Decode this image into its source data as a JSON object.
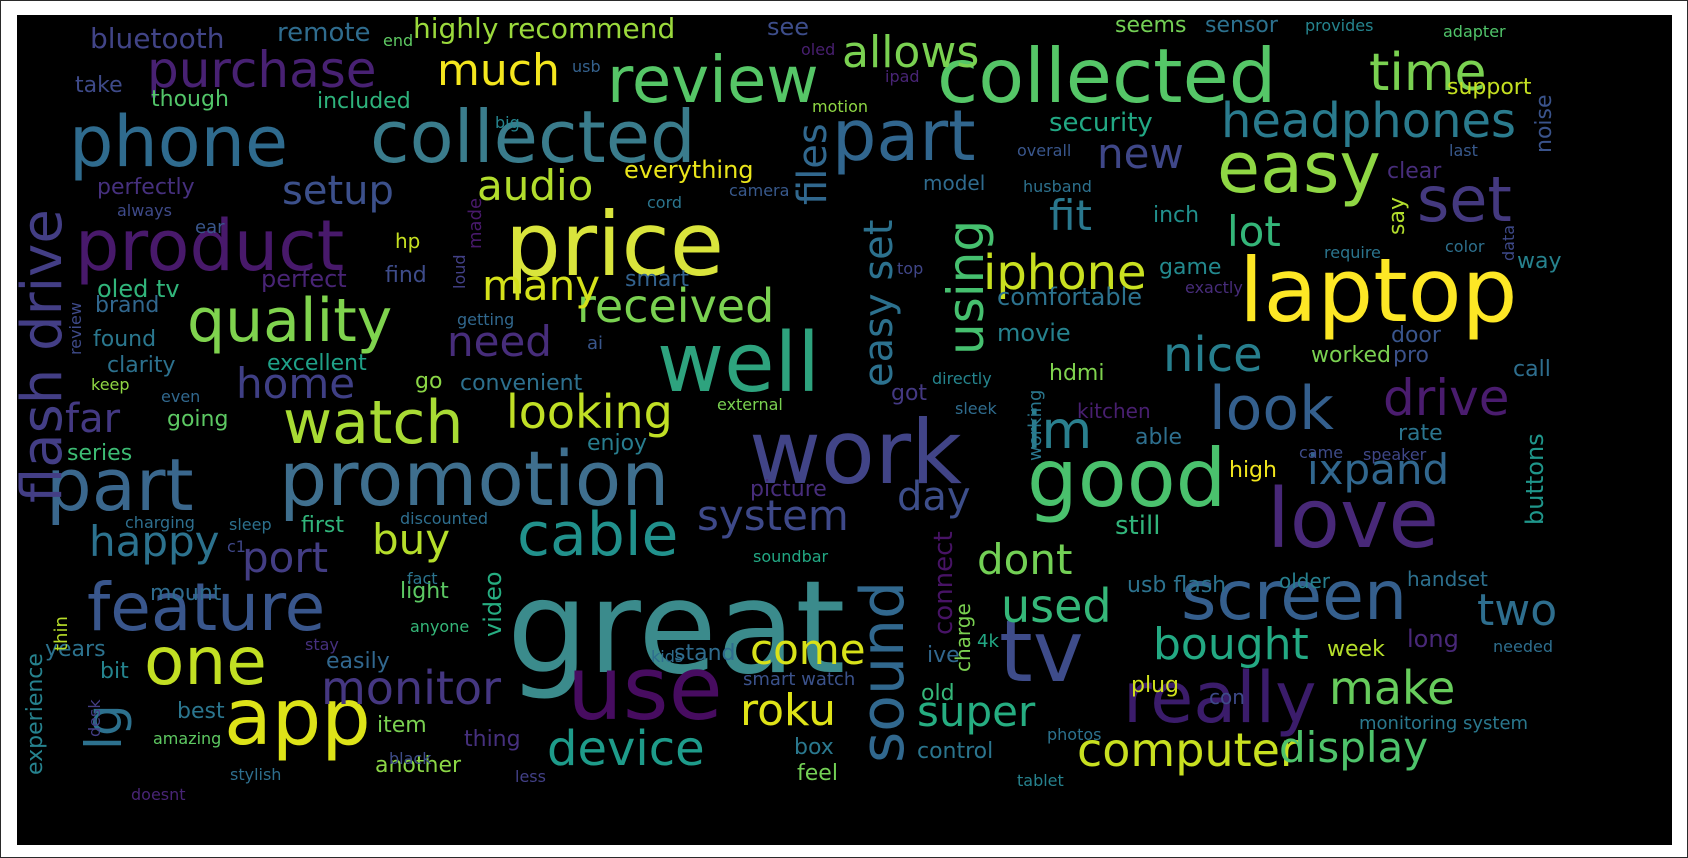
{
  "wordcloud": {
    "background": "#000000",
    "colormap": "viridis",
    "words": [
      {
        "text": "great",
        "color": "#3b8b8c"
      },
      {
        "text": "work",
        "color": "#414487"
      },
      {
        "text": "price",
        "color": "#d9e43c"
      },
      {
        "text": "laptop",
        "color": "#fde725"
      },
      {
        "text": "collected",
        "color": "#55c667"
      },
      {
        "text": "collected",
        "color": "#3a7c8c"
      },
      {
        "text": "review",
        "color": "#56c667"
      },
      {
        "text": "promotion",
        "color": "#3f6f8e"
      },
      {
        "text": "use",
        "color": "#470c60"
      },
      {
        "text": "tv",
        "color": "#3e4c8a"
      },
      {
        "text": "well",
        "color": "#2ea37e"
      },
      {
        "text": "good",
        "color": "#4ac16d"
      },
      {
        "text": "love",
        "color": "#482878"
      },
      {
        "text": "app",
        "color": "#dde318"
      },
      {
        "text": "part",
        "color": "#3a678d"
      },
      {
        "text": "part",
        "color": "#31668e"
      },
      {
        "text": "product",
        "color": "#48196b"
      },
      {
        "text": "phone",
        "color": "#2f6b8e"
      },
      {
        "text": "screen",
        "color": "#355f8d"
      },
      {
        "text": "easy",
        "color": "#8fd744"
      },
      {
        "text": "feature",
        "color": "#39568c"
      },
      {
        "text": "really",
        "color": "#3b1c6b"
      },
      {
        "text": "one",
        "color": "#c2df23"
      },
      {
        "text": "quality",
        "color": "#7fd34e"
      },
      {
        "text": "watch",
        "color": "#a8db34"
      },
      {
        "text": "sound",
        "color": "#31688e"
      },
      {
        "text": "flash drive",
        "color": "#433e85"
      },
      {
        "text": "purchase",
        "color": "#482173"
      },
      {
        "text": "time",
        "color": "#7ad151"
      },
      {
        "text": "headphones",
        "color": "#2a7b8e"
      },
      {
        "text": "set",
        "color": "#44397f"
      },
      {
        "text": "look",
        "color": "#345f8d"
      },
      {
        "text": "drive",
        "color": "#4a1c6e"
      },
      {
        "text": "nice",
        "color": "#277f8e"
      },
      {
        "text": "im",
        "color": "#2a7f8e"
      },
      {
        "text": "iphone",
        "color": "#c9e020"
      },
      {
        "text": "using",
        "color": "#46c06f"
      },
      {
        "text": "lg",
        "color": "#2d718e"
      },
      {
        "text": "cable",
        "color": "#21918c"
      },
      {
        "text": "device",
        "color": "#1e9b8a"
      },
      {
        "text": "monitor",
        "color": "#453781"
      },
      {
        "text": "computer",
        "color": "#c8e020"
      },
      {
        "text": "display",
        "color": "#4ec36b"
      },
      {
        "text": "make",
        "color": "#67cc5c"
      },
      {
        "text": "bought",
        "color": "#23a983"
      },
      {
        "text": "two",
        "color": "#2e6e8e"
      },
      {
        "text": "used",
        "color": "#35b779"
      },
      {
        "text": "dont",
        "color": "#73d055"
      },
      {
        "text": "super",
        "color": "#26ad81"
      },
      {
        "text": "roku",
        "color": "#dfe318"
      },
      {
        "text": "come",
        "color": "#d8e219"
      },
      {
        "text": "buy",
        "color": "#b5de2b"
      },
      {
        "text": "system",
        "color": "#3e4989"
      },
      {
        "text": "day",
        "color": "#3d4e8a"
      },
      {
        "text": "ixpand",
        "color": "#31678e"
      },
      {
        "text": "looking",
        "color": "#c0df25"
      },
      {
        "text": "received",
        "color": "#7ad151"
      },
      {
        "text": "many",
        "color": "#d5e21a"
      },
      {
        "text": "need",
        "color": "#472d7b"
      },
      {
        "text": "home",
        "color": "#3f3f85"
      },
      {
        "text": "far",
        "color": "#443983"
      },
      {
        "text": "happy",
        "color": "#2c728e"
      },
      {
        "text": "port",
        "color": "#433d84"
      },
      {
        "text": "audio",
        "color": "#b2dd2d"
      },
      {
        "text": "setup",
        "color": "#3c508b"
      },
      {
        "text": "much",
        "color": "#f4e61e"
      },
      {
        "text": "allows",
        "color": "#7ad151"
      },
      {
        "text": "new",
        "color": "#3f4788"
      },
      {
        "text": "fit",
        "color": "#2a788e"
      },
      {
        "text": "lot",
        "color": "#34b679"
      },
      {
        "text": "files",
        "color": "#31688e"
      },
      {
        "text": "easy set",
        "color": "#2c718e"
      },
      {
        "text": "bluetooth",
        "color": "#414487"
      },
      {
        "text": "remote",
        "color": "#2f6c8e"
      },
      {
        "text": "highly recommend",
        "color": "#9bd93c"
      },
      {
        "text": "see",
        "color": "#3d4d8a"
      },
      {
        "text": "seems",
        "color": "#73d055"
      },
      {
        "text": "sensor",
        "color": "#2c718e"
      },
      {
        "text": "provides",
        "color": "#25848e"
      },
      {
        "text": "adapter",
        "color": "#50c46a"
      },
      {
        "text": "support",
        "color": "#c5e021"
      },
      {
        "text": "security",
        "color": "#22a884"
      },
      {
        "text": "everything",
        "color": "#eae51a"
      },
      {
        "text": "oled tv",
        "color": "#31b57b"
      },
      {
        "text": "included",
        "color": "#2eb37c"
      },
      {
        "text": "though",
        "color": "#52c569"
      },
      {
        "text": "take",
        "color": "#3e4a89"
      },
      {
        "text": "perfectly",
        "color": "#46307e"
      },
      {
        "text": "always",
        "color": "#3e4a89"
      },
      {
        "text": "ear",
        "color": "#39568c"
      },
      {
        "text": "hp",
        "color": "#c6e021"
      },
      {
        "text": "made",
        "color": "#48196b"
      },
      {
        "text": "find",
        "color": "#3e4c8a"
      },
      {
        "text": "perfect",
        "color": "#482475"
      },
      {
        "text": "smart",
        "color": "#33628d"
      },
      {
        "text": "brand",
        "color": "#31678e"
      },
      {
        "text": "found",
        "color": "#2a778e"
      },
      {
        "text": "clarity",
        "color": "#2c718e"
      },
      {
        "text": "excellent",
        "color": "#1fa188"
      },
      {
        "text": "convenient",
        "color": "#2d708e"
      },
      {
        "text": "going",
        "color": "#5cc863"
      },
      {
        "text": "series",
        "color": "#3dbc74"
      },
      {
        "text": "enjoy",
        "color": "#287d8e"
      },
      {
        "text": "go",
        "color": "#8bd646"
      },
      {
        "text": "even",
        "color": "#31688e"
      },
      {
        "text": "keep",
        "color": "#90d743"
      },
      {
        "text": "review",
        "color": "#3e4a89"
      },
      {
        "text": "loud",
        "color": "#424086"
      },
      {
        "text": "ai",
        "color": "#39568c"
      },
      {
        "text": "getting",
        "color": "#31688e"
      },
      {
        "text": "external",
        "color": "#7ad151"
      },
      {
        "text": "movie",
        "color": "#26828e"
      },
      {
        "text": "comfortable",
        "color": "#2c728e"
      },
      {
        "text": "hdmi",
        "color": "#7fd34e"
      },
      {
        "text": "working",
        "color": "#2a778e"
      },
      {
        "text": "directly",
        "color": "#25858e"
      },
      {
        "text": "got",
        "color": "#443983"
      },
      {
        "text": "sleek",
        "color": "#2f6c8e"
      },
      {
        "text": "kitchen",
        "color": "#481f70"
      },
      {
        "text": "able",
        "color": "#2e6f8e"
      },
      {
        "text": "game",
        "color": "#23898e"
      },
      {
        "text": "inch",
        "color": "#21908d"
      },
      {
        "text": "model",
        "color": "#2f6b8e"
      },
      {
        "text": "husband",
        "color": "#2d718e"
      },
      {
        "text": "overall",
        "color": "#39568c"
      },
      {
        "text": "clear",
        "color": "#472d7b"
      },
      {
        "text": "last",
        "color": "#38598c"
      },
      {
        "text": "noise",
        "color": "#3a538b"
      },
      {
        "text": "say",
        "color": "#b2dd2d"
      },
      {
        "text": "color",
        "color": "#2d708e"
      },
      {
        "text": "way",
        "color": "#26828e"
      },
      {
        "text": "data",
        "color": "#3e4989"
      },
      {
        "text": "require",
        "color": "#2b758e"
      },
      {
        "text": "exactly",
        "color": "#472c7a"
      },
      {
        "text": "top",
        "color": "#404688"
      },
      {
        "text": "door",
        "color": "#39558c"
      },
      {
        "text": "worked",
        "color": "#7ad151"
      },
      {
        "text": "pro",
        "color": "#3b528b"
      },
      {
        "text": "call",
        "color": "#2e6e8e"
      },
      {
        "text": "rate",
        "color": "#2b748e"
      },
      {
        "text": "buttons",
        "color": "#1f968b"
      },
      {
        "text": "high",
        "color": "#f1e51d"
      },
      {
        "text": "came",
        "color": "#3e4c8a"
      },
      {
        "text": "speaker",
        "color": "#3f4788"
      },
      {
        "text": "still",
        "color": "#31b57b"
      },
      {
        "text": "connect",
        "color": "#471365"
      },
      {
        "text": "usb flash",
        "color": "#2c728e"
      },
      {
        "text": "older",
        "color": "#277f8e"
      },
      {
        "text": "handset",
        "color": "#2d708e"
      },
      {
        "text": "week",
        "color": "#b5de2b"
      },
      {
        "text": "long",
        "color": "#482878"
      },
      {
        "text": "needed",
        "color": "#2e6e8e"
      },
      {
        "text": "monitoring system",
        "color": "#2a788e"
      },
      {
        "text": "charge",
        "color": "#7ad151"
      },
      {
        "text": "ive",
        "color": "#31678e"
      },
      {
        "text": "4k",
        "color": "#22a884"
      },
      {
        "text": "old",
        "color": "#35b779"
      },
      {
        "text": "plug",
        "color": "#d0e11c"
      },
      {
        "text": "con",
        "color": "#3e4a89"
      },
      {
        "text": "photos",
        "color": "#2c728e"
      },
      {
        "text": "control",
        "color": "#2b758e"
      },
      {
        "text": "tablet",
        "color": "#26828e"
      },
      {
        "text": "box",
        "color": "#2a788e"
      },
      {
        "text": "feel",
        "color": "#73d055"
      },
      {
        "text": "smart watch",
        "color": "#3b528b"
      },
      {
        "text": "kids",
        "color": "#2e6e8e"
      },
      {
        "text": "stand",
        "color": "#2f6c8e"
      },
      {
        "text": "soundbar",
        "color": "#22a884"
      },
      {
        "text": "video",
        "color": "#26ad81"
      },
      {
        "text": "light",
        "color": "#5cc863"
      },
      {
        "text": "fact",
        "color": "#2b748e"
      },
      {
        "text": "anyone",
        "color": "#35b779"
      },
      {
        "text": "stay",
        "color": "#46307e"
      },
      {
        "text": "easily",
        "color": "#31678e"
      },
      {
        "text": "item",
        "color": "#7ad151"
      },
      {
        "text": "thing",
        "color": "#46307e"
      },
      {
        "text": "another",
        "color": "#8bd646"
      },
      {
        "text": "black",
        "color": "#3e4c8a"
      },
      {
        "text": "less",
        "color": "#424086"
      },
      {
        "text": "stylish",
        "color": "#2e6f8e"
      },
      {
        "text": "doesnt",
        "color": "#482475"
      },
      {
        "text": "amazing",
        "color": "#5ec962"
      },
      {
        "text": "best",
        "color": "#2b758e"
      },
      {
        "text": "bit",
        "color": "#25848e"
      },
      {
        "text": "years",
        "color": "#2c728e"
      },
      {
        "text": "mount",
        "color": "#2f6c8e"
      },
      {
        "text": "thin",
        "color": "#b8de29"
      },
      {
        "text": "experience",
        "color": "#26828e"
      },
      {
        "text": "desk",
        "color": "#433e85"
      },
      {
        "text": "charging",
        "color": "#2e6f8e"
      },
      {
        "text": "c1",
        "color": "#3f4788"
      },
      {
        "text": "sleep",
        "color": "#2c718e"
      },
      {
        "text": "first",
        "color": "#31b57b"
      },
      {
        "text": "discounted",
        "color": "#2e6e8e"
      },
      {
        "text": "picture",
        "color": "#472d7b"
      },
      {
        "text": "usb",
        "color": "#34618d"
      },
      {
        "text": "end",
        "color": "#5ec962"
      },
      {
        "text": "big",
        "color": "#25848e"
      },
      {
        "text": "oled",
        "color": "#481f70"
      },
      {
        "text": "ipad",
        "color": "#482475"
      },
      {
        "text": "motion",
        "color": "#8fd744"
      },
      {
        "text": "cord",
        "color": "#2b758e"
      },
      {
        "text": "camera",
        "color": "#38598c"
      }
    ]
  }
}
